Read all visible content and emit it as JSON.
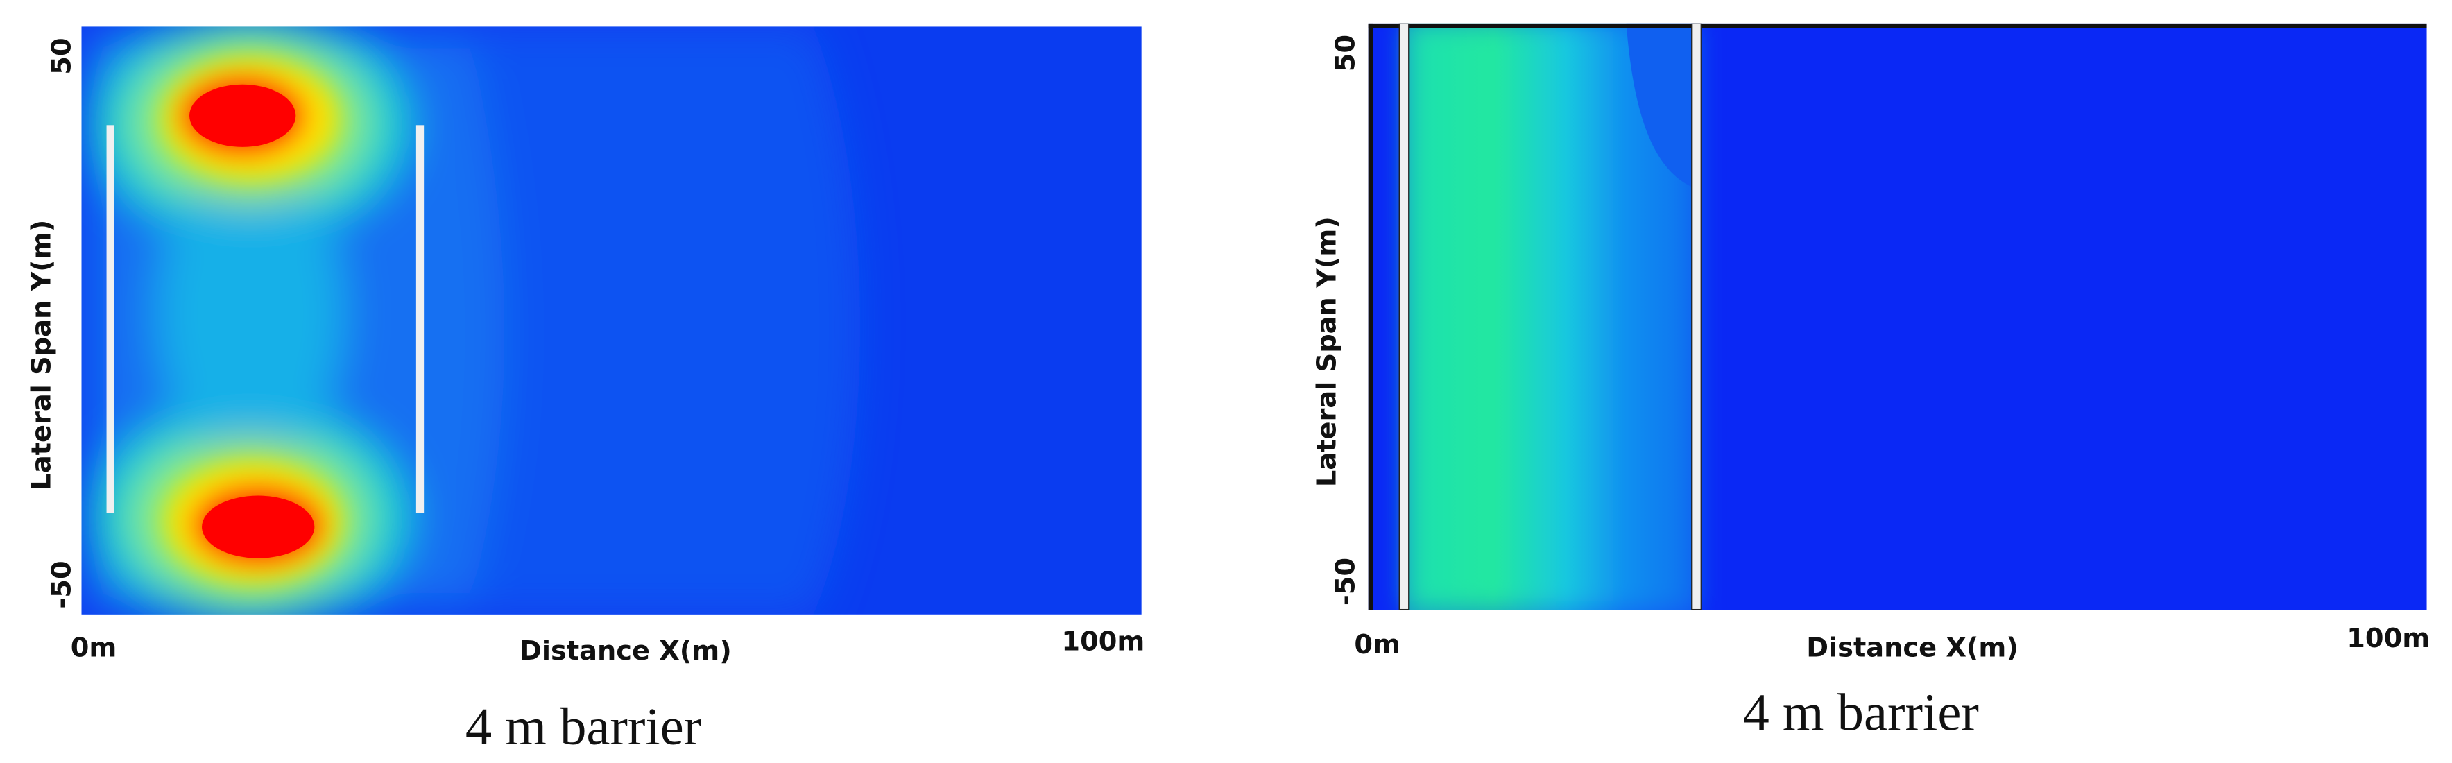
{
  "figure": {
    "panels": [
      {
        "y_label": "Lateral Span Y(m)",
        "y_top": "50",
        "y_bottom": "-50",
        "x_label": "Distance X(m)",
        "x_left": "0m",
        "x_right": "100m",
        "caption": "4 m barrier"
      },
      {
        "y_label": "Lateral Span Y(m)",
        "y_top": "50",
        "y_bottom": "-50",
        "x_label": "Distance X(m)",
        "x_left": "0m",
        "x_right": "100m",
        "caption": "4 m barrier"
      }
    ]
  }
}
